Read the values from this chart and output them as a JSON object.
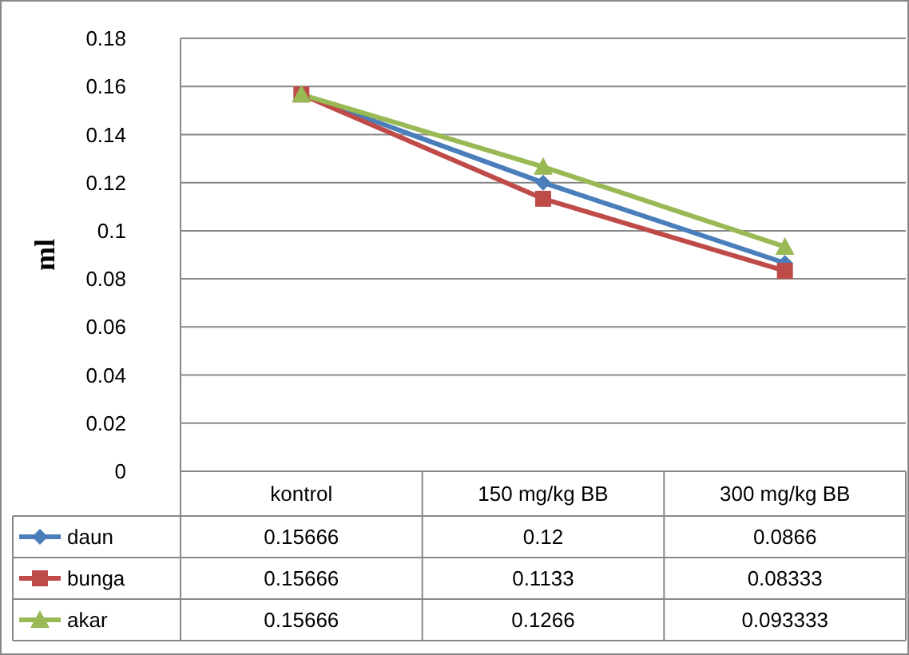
{
  "chart_data": {
    "type": "line",
    "ylabel": "ml",
    "categories": [
      "kontrol",
      "150 mg/kg BB",
      "300 mg/kg BB"
    ],
    "series": [
      {
        "name": "daun",
        "color": "#4a7ebb",
        "marker": "diamond",
        "values": [
          0.15666,
          0.12,
          0.0866
        ]
      },
      {
        "name": "bunga",
        "color": "#be4b48",
        "marker": "square",
        "values": [
          0.15666,
          0.1133,
          0.08333
        ]
      },
      {
        "name": "akar",
        "color": "#98b954",
        "marker": "triangle",
        "values": [
          0.15666,
          0.1266,
          0.093333
        ]
      }
    ],
    "ylim": [
      0,
      0.18
    ],
    "yticks": [
      0,
      {
        "value": 0.02,
        "label": "0.02"
      },
      {
        "value": 0.04,
        "label": "0.04"
      },
      {
        "value": 0.06,
        "label": "0.06"
      },
      {
        "value": 0.08,
        "label": "0.08"
      },
      {
        "value": 0.1,
        "label": "0.1"
      },
      {
        "value": 0.12,
        "label": "0.12"
      },
      {
        "value": 0.14,
        "label": "0.14"
      },
      {
        "value": 0.16,
        "label": "0.16"
      },
      {
        "value": 0.18,
        "label": "0.18"
      }
    ],
    "grid": "y",
    "legend": "bottom",
    "data_labels": true,
    "line_style": "solid"
  }
}
